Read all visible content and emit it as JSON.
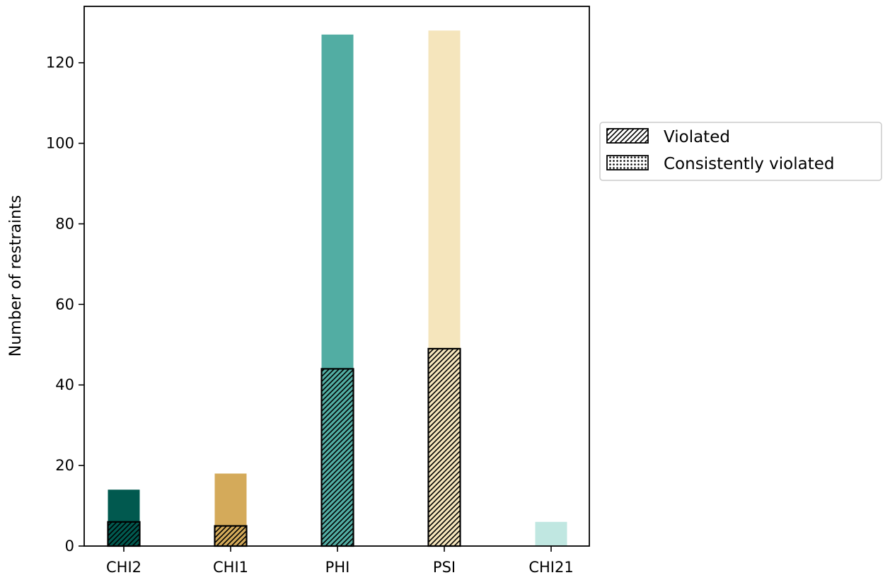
{
  "chart_data": {
    "type": "bar",
    "categories": [
      "CHI2",
      "CHI1",
      "PHI",
      "PSI",
      "CHI21"
    ],
    "series": [
      {
        "name": "",
        "values": [
          14,
          18,
          127,
          128,
          6
        ]
      },
      {
        "name": "Violated",
        "values": [
          6,
          5,
          44,
          49,
          0
        ]
      },
      {
        "name": "Consistently violated",
        "values": [
          0,
          0,
          0,
          0,
          0
        ]
      }
    ],
    "bar_colors": [
      "#01594f",
      "#d4aa5a",
      "#52ada3",
      "#f5e5bc",
      "#c0e7e1"
    ],
    "ylabel": "Number of restraints",
    "xlabel": "",
    "ylim": [
      0,
      134
    ],
    "yticks": [
      "0",
      "20",
      "40",
      "60",
      "80",
      "100",
      "120"
    ],
    "legend": {
      "placement": "outside-right",
      "entries": [
        {
          "label": "Violated",
          "pattern": "diagonal-hatch"
        },
        {
          "label": "Consistently violated",
          "pattern": "dot-hatch"
        }
      ]
    }
  }
}
